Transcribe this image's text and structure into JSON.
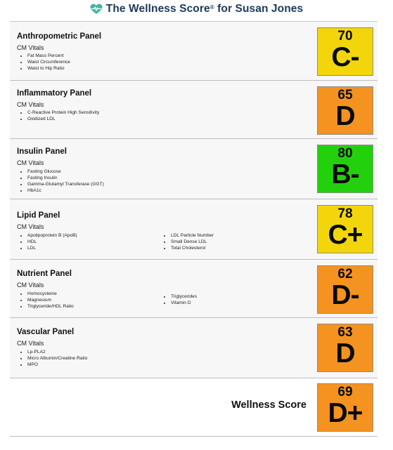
{
  "header": {
    "title_prefix": "The Wellness Score",
    "registered": "®",
    "title_suffix": " for Susan Jones"
  },
  "panels": [
    {
      "name": "Anthropometric Panel",
      "subtitle": "CM Vitals",
      "items_col1": [
        "Fat Mass Percent",
        "Waist Circumference",
        "Waist to Hip Ratio"
      ],
      "items_col2": [],
      "score": "70",
      "grade": "C-",
      "color": "#f2d60b"
    },
    {
      "name": "Inflammatory Panel",
      "subtitle": "CM Vitals",
      "items_col1": [
        "C-Reactive Protein High Sensitivity",
        "Oxidized LDL"
      ],
      "items_col2": [],
      "score": "65",
      "grade": "D",
      "color": "#f4931f"
    },
    {
      "name": "Insulin Panel",
      "subtitle": "CM Vitals",
      "items_col1": [
        "Fasting Glucose",
        "Fasting Insulin",
        "Gamma-Glutamyl Transferase (GGT)",
        "HbA1c"
      ],
      "items_col2": [],
      "score": "80",
      "grade": "B-",
      "color": "#22d10c"
    },
    {
      "name": "Lipid Panel",
      "subtitle": "CM Vitals",
      "items_col1": [
        "Apolipoprotein B (ApoB)",
        "HDL",
        "LDL"
      ],
      "items_col2": [
        "LDL Particle Number",
        "Small Dense LDL",
        "Total Cholesterol"
      ],
      "score": "78",
      "grade": "C+",
      "color": "#f2d60b"
    },
    {
      "name": "Nutrient Panel",
      "subtitle": "CM Vitals",
      "items_col1": [
        "Homocysteine",
        "Magnesium",
        "Triglyceride/HDL Ratio"
      ],
      "items_col2": [
        "Triglycerides",
        "Vitamin D"
      ],
      "score": "62",
      "grade": "D-",
      "color": "#f4931f"
    },
    {
      "name": "Vascular Panel",
      "subtitle": "CM Vitals",
      "items_col1": [
        "Lp-PLA2",
        "Micro Albumin/Creatine Ratio",
        "MPO"
      ],
      "items_col2": [],
      "score": "63",
      "grade": "D",
      "color": "#f4931f"
    }
  ],
  "overall": {
    "label": "Wellness Score",
    "score": "69",
    "grade": "D+",
    "color": "#f4931f"
  }
}
